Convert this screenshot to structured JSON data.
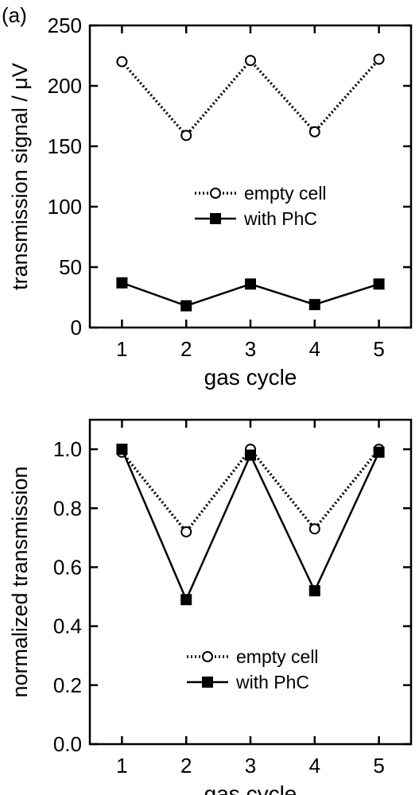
{
  "panel_label": "(a)",
  "chart_data": [
    {
      "type": "line",
      "xlabel": "gas cycle",
      "ylabel": "transmission signal  /  μV",
      "x": [
        1,
        2,
        3,
        4,
        5
      ],
      "xticks": [
        "1",
        "2",
        "3",
        "4",
        "5"
      ],
      "xlim": [
        0.5,
        5.5
      ],
      "ylim": [
        0,
        250
      ],
      "yticks": [
        "0",
        "50",
        "100",
        "150",
        "200",
        "250"
      ],
      "yticks_values": [
        0,
        50,
        100,
        150,
        200,
        250
      ],
      "legend_position": "center-right",
      "series": [
        {
          "name": "empty cell",
          "values": [
            220,
            159,
            221,
            162,
            222
          ],
          "line": "dotted",
          "marker": "open-circle"
        },
        {
          "name": "with PhC",
          "values": [
            37,
            18,
            36,
            19,
            36
          ],
          "line": "solid",
          "marker": "filled-square"
        }
      ]
    },
    {
      "type": "line",
      "xlabel": "gas cycle",
      "ylabel": "normalized transmission",
      "x": [
        1,
        2,
        3,
        4,
        5
      ],
      "xticks": [
        "1",
        "2",
        "3",
        "4",
        "5"
      ],
      "xlim": [
        0.5,
        5.5
      ],
      "ylim": [
        0,
        1.1
      ],
      "yticks": [
        "0.0",
        "0.2",
        "0.4",
        "0.6",
        "0.8",
        "1.0"
      ],
      "yticks_values": [
        0,
        0.2,
        0.4,
        0.6,
        0.8,
        1.0
      ],
      "legend_position": "bottom-center",
      "series": [
        {
          "name": "empty cell",
          "values": [
            0.99,
            0.72,
            1.0,
            0.73,
            1.0
          ],
          "line": "dotted",
          "marker": "open-circle"
        },
        {
          "name": "with PhC",
          "values": [
            1.0,
            0.49,
            0.98,
            0.52,
            0.99
          ],
          "line": "solid",
          "marker": "filled-square"
        }
      ]
    }
  ]
}
